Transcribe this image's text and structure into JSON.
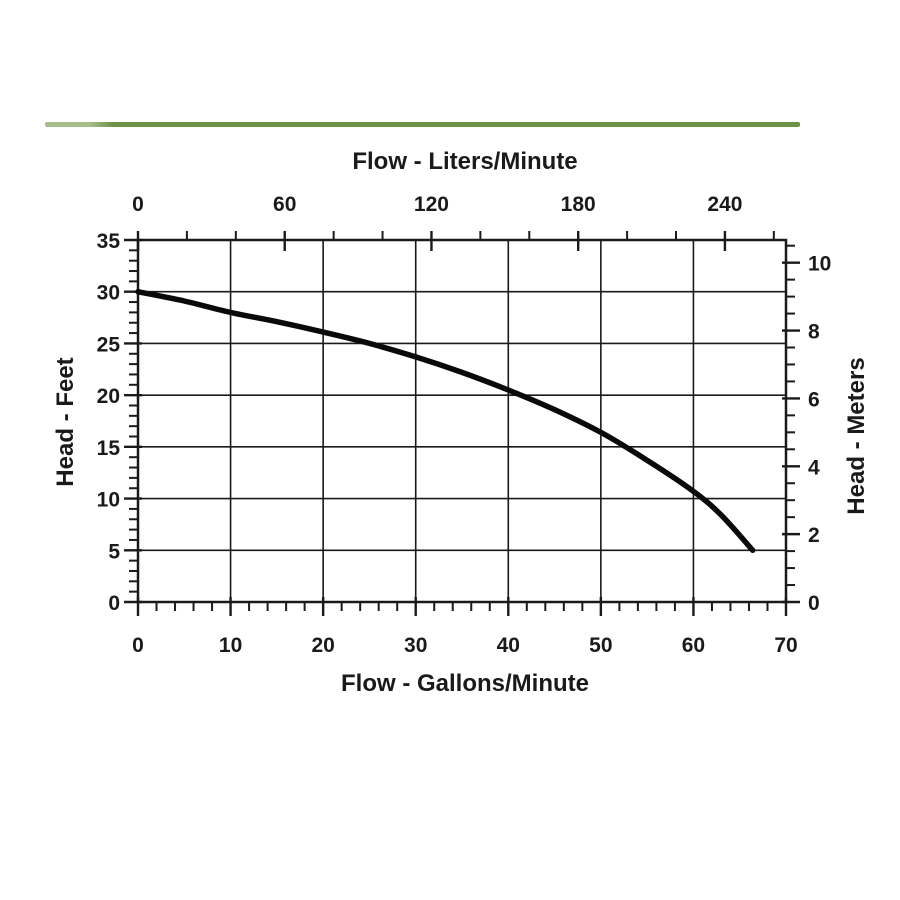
{
  "page": {
    "background": "#ffffff"
  },
  "divider": {
    "color_main": "#6b9348",
    "color_left_cap": "#a6bd8a"
  },
  "chart_data": {
    "type": "line",
    "title_top_axis": "Flow - Liters/Minute",
    "xlabel_bottom": "Flow - Gallons/Minute",
    "ylabel_left": "Head - Feet",
    "ylabel_right": "Head - Meters",
    "grid": true,
    "axis_color": "#1a1a1a",
    "x_bottom": {
      "label": "Flow - Gallons/Minute",
      "min": 0,
      "max": 70,
      "major_ticks": [
        0,
        10,
        20,
        30,
        40,
        50,
        60,
        70
      ],
      "minor_step": 2
    },
    "x_top": {
      "label": "Flow - Liters/Minute",
      "major_ticks": [
        0,
        60,
        120,
        180,
        240
      ],
      "minor_step": 20,
      "gal_per_liter": 0.264172
    },
    "y_left": {
      "label": "Head - Feet",
      "min": 0,
      "max": 35,
      "major_ticks": [
        0,
        5,
        10,
        15,
        20,
        25,
        30,
        35
      ],
      "minor_step": 1
    },
    "y_right": {
      "label": "Head - Meters",
      "major_ticks": [
        0,
        2,
        4,
        6,
        8,
        10
      ],
      "minor_step": 0.5,
      "feet_per_meter": 3.28084
    },
    "series": [
      {
        "name": "pump-performance-curve",
        "color": "#0a0a0a",
        "width": 5.5,
        "points": [
          [
            0,
            30.0
          ],
          [
            5,
            29.1
          ],
          [
            10,
            28.0
          ],
          [
            15,
            27.1
          ],
          [
            20,
            26.1
          ],
          [
            25,
            25.0
          ],
          [
            30,
            23.7
          ],
          [
            35,
            22.2
          ],
          [
            40,
            20.5
          ],
          [
            45,
            18.6
          ],
          [
            50,
            16.4
          ],
          [
            55,
            13.7
          ],
          [
            60,
            10.7
          ],
          [
            63,
            8.4
          ],
          [
            66.4,
            5.0
          ]
        ]
      }
    ]
  }
}
